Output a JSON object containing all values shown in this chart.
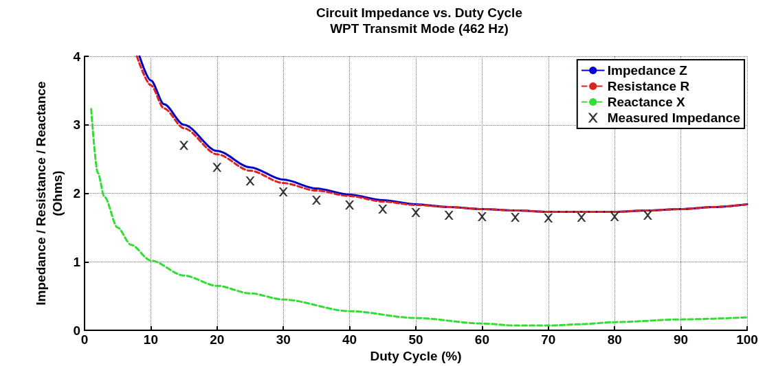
{
  "chart_data": {
    "type": "line",
    "title": "Circuit Impedance vs. Duty Cycle",
    "subtitle": "WPT Transmit Mode (462 Hz)",
    "xlabel": "Duty Cycle (%)",
    "ylabel": "Impedance / Resistance / Reactance\n(Ohms)",
    "xlim": [
      0,
      100
    ],
    "xticks": [
      0,
      10,
      20,
      30,
      40,
      50,
      60,
      70,
      80,
      90,
      100
    ],
    "ylim": [
      0,
      4
    ],
    "yticks": [
      0,
      1,
      2,
      3,
      4
    ],
    "grid": true,
    "legend": "top right",
    "series": [
      {
        "name": "Impedance Z",
        "color": "#0000cc",
        "line_style": "solid",
        "marker": "none",
        "x": [
          8.3,
          10,
          12,
          15,
          20,
          25,
          30,
          35,
          40,
          45,
          50,
          55,
          60,
          65,
          70,
          75,
          80,
          85,
          90,
          95,
          100
        ],
        "values": [
          4,
          3.65,
          3.3,
          3.0,
          2.62,
          2.38,
          2.2,
          2.07,
          1.98,
          1.9,
          1.84,
          1.8,
          1.77,
          1.75,
          1.73,
          1.73,
          1.73,
          1.75,
          1.77,
          1.8,
          1.84
        ]
      },
      {
        "name": "Resistance R",
        "color": "#dd2222",
        "line_style": "dashed",
        "marker": "none",
        "x": [
          7.9,
          10,
          12,
          15,
          20,
          25,
          30,
          35,
          40,
          45,
          50,
          55,
          60,
          65,
          70,
          75,
          80,
          85,
          90,
          95,
          100
        ],
        "values": [
          4,
          3.58,
          3.24,
          2.95,
          2.57,
          2.33,
          2.15,
          2.04,
          1.96,
          1.88,
          1.83,
          1.8,
          1.77,
          1.75,
          1.73,
          1.73,
          1.73,
          1.75,
          1.77,
          1.8,
          1.84
        ]
      },
      {
        "name": "Reactance X",
        "color": "#33dd33",
        "line_style": "dashed",
        "marker": "none",
        "x": [
          1,
          2,
          3,
          5,
          7,
          10,
          15,
          20,
          25,
          30,
          40,
          50,
          60,
          65,
          70,
          75,
          80,
          90,
          100
        ],
        "values": [
          3.23,
          2.3,
          1.95,
          1.5,
          1.25,
          1.02,
          0.8,
          0.65,
          0.54,
          0.45,
          0.28,
          0.18,
          0.1,
          0.07,
          0.07,
          0.09,
          0.12,
          0.16,
          0.19
        ]
      },
      {
        "name": "Measured Impedance",
        "type": "scatter",
        "color": "#000000",
        "marker": "cross",
        "x": [
          15,
          20,
          25,
          30,
          35,
          40,
          45,
          50,
          55,
          60,
          65,
          70,
          75,
          80,
          85
        ],
        "values": [
          2.7,
          2.38,
          2.18,
          2.02,
          1.9,
          1.83,
          1.77,
          1.72,
          1.68,
          1.66,
          1.65,
          1.64,
          1.65,
          1.66,
          1.68
        ]
      }
    ]
  }
}
